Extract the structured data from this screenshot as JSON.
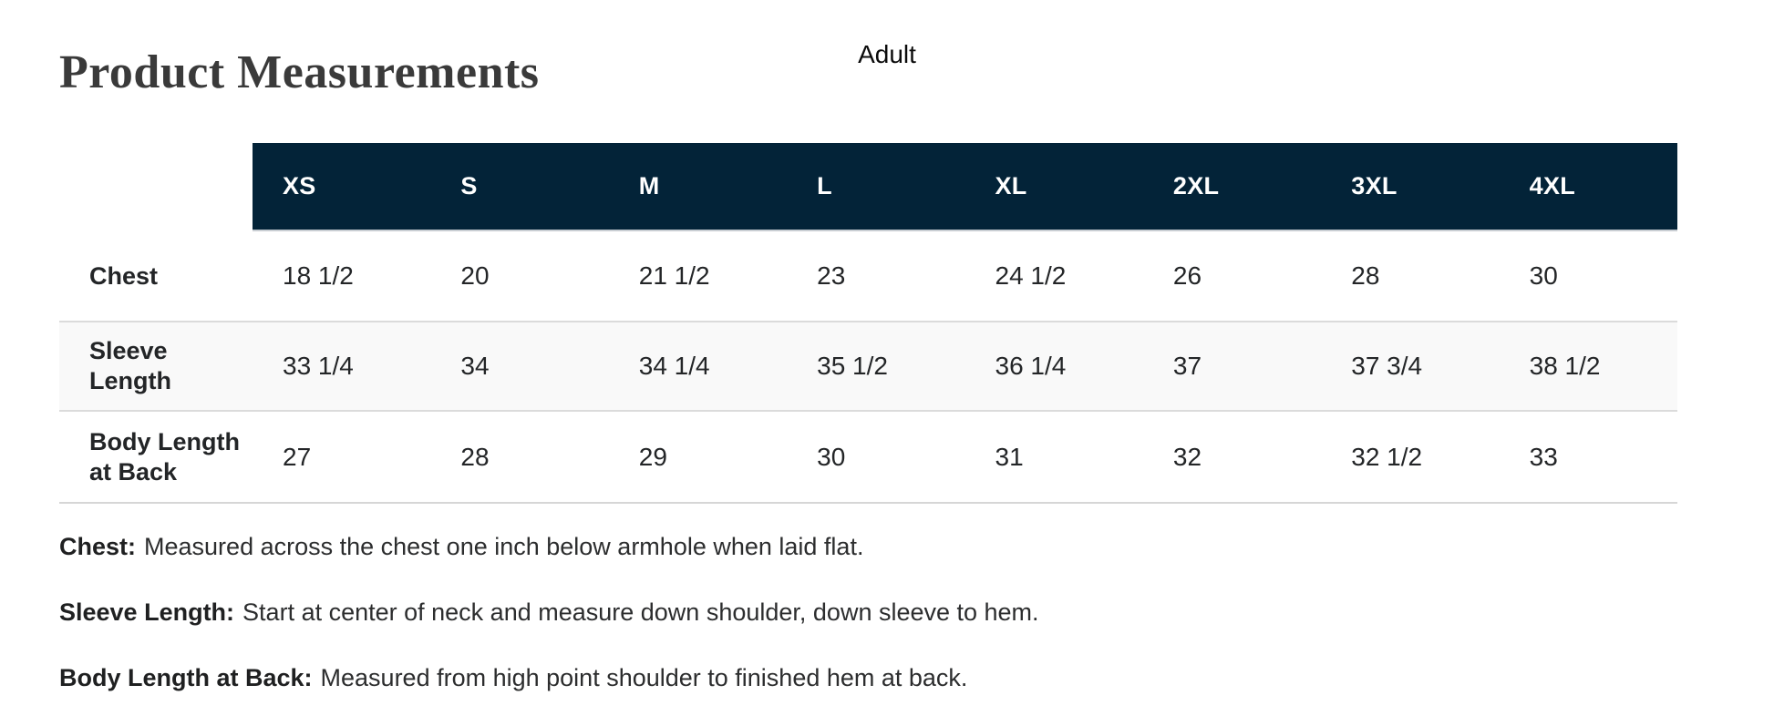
{
  "chart_data": {
    "type": "table",
    "title": "Product Measurements",
    "group_label": "Adult",
    "columns": [
      "XS",
      "S",
      "M",
      "L",
      "XL",
      "2XL",
      "3XL",
      "4XL"
    ],
    "rows": [
      {
        "label": "Chest",
        "values": [
          "18 1/2",
          "20",
          "21 1/2",
          "23",
          "24 1/2",
          "26",
          "28",
          "30"
        ]
      },
      {
        "label": "Sleeve Length",
        "values": [
          "33 1/4",
          "34",
          "34 1/4",
          "35 1/2",
          "36 1/4",
          "37",
          "37 3/4",
          "38 1/2"
        ]
      },
      {
        "label": "Body Length at Back",
        "values": [
          "27",
          "28",
          "29",
          "30",
          "31",
          "32",
          "32 1/2",
          "33"
        ]
      }
    ],
    "units": "inches (as displayed, unlabeled)",
    "layout": {
      "header_position": "top",
      "row_labels_position": "left",
      "zebra_striping": true
    }
  },
  "notes": [
    {
      "term": "Chest:",
      "description": "Measured across the chest one inch below armhole when laid flat."
    },
    {
      "term": "Sleeve Length:",
      "description": "Start at center of neck and measure down shoulder, down sleeve to hem."
    },
    {
      "term": "Body Length at Back:",
      "description": "Measured from high point shoulder to finished hem at back."
    }
  ],
  "colors": {
    "header_bg": "#032338",
    "header_text": "#ffffff",
    "zebra_row_bg": "#f9f9f9",
    "divider": "#dbdbdb",
    "title_text": "#3a3a3a",
    "body_text": "#232527"
  }
}
